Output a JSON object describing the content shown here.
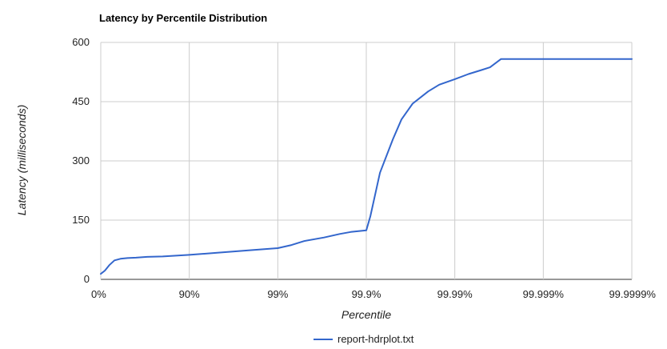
{
  "chart_data": {
    "type": "line",
    "title": "Latency by Percentile Distribution",
    "xlabel": "Percentile",
    "ylabel": "Latency (milliseconds)",
    "x_scale": "log-inverse-percentile",
    "x_ticks": [
      "0%",
      "90%",
      "99%",
      "99.9%",
      "99.99%",
      "99.999%",
      "99.9999%"
    ],
    "y_ticks": [
      "0",
      "150",
      "300",
      "450",
      "600"
    ],
    "ylim": [
      0,
      600
    ],
    "grid": true,
    "legend_position": "bottom",
    "series": [
      {
        "name": "report-hdrplot.txt",
        "color": "#3366cc",
        "x_percentile": [
          0,
          10,
          20,
          30,
          40,
          50,
          60,
          70,
          80,
          90,
          95,
          97,
          98,
          99,
          99.3,
          99.5,
          99.7,
          99.8,
          99.85,
          99.9,
          99.91,
          99.93,
          99.95,
          99.96,
          99.97,
          99.98,
          99.985,
          99.99,
          99.993,
          99.995,
          99.996,
          99.997,
          99.9999
        ],
        "values": [
          14,
          22,
          36,
          48,
          52,
          54,
          55,
          57,
          58,
          62,
          67,
          71,
          74,
          79,
          87,
          97,
          106,
          115,
          120,
          124,
          160,
          270,
          355,
          405,
          445,
          476,
          493,
          507,
          520,
          530,
          537,
          558,
          558
        ]
      }
    ]
  }
}
